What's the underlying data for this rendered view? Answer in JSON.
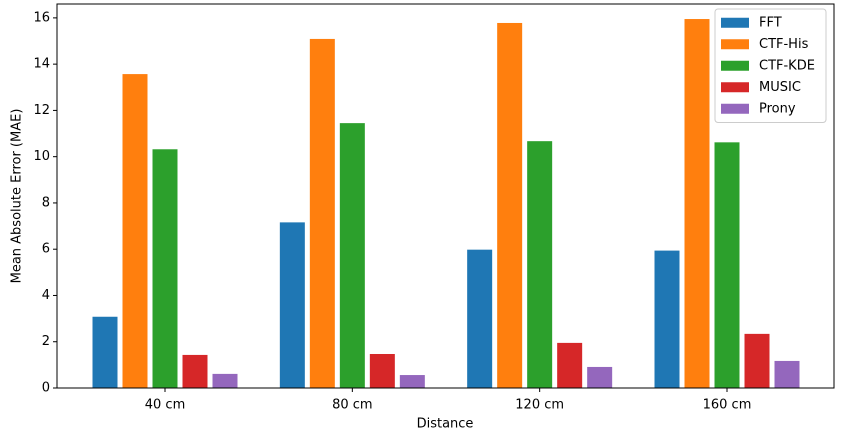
{
  "chart_data": {
    "type": "bar",
    "x_label": "Distance",
    "y_label": "Mean Absolute Error (MAE)",
    "categories": [
      "40 cm",
      "80 cm",
      "120 cm",
      "160 cm"
    ],
    "series": [
      {
        "name": "FFT",
        "color": "#1f77b4",
        "values": [
          3.08,
          7.16,
          5.98,
          5.94
        ]
      },
      {
        "name": "CTF-His",
        "color": "#ff7f0e",
        "values": [
          13.57,
          15.09,
          15.78,
          15.95
        ]
      },
      {
        "name": "CTF-KDE",
        "color": "#2ca02c",
        "values": [
          10.32,
          11.45,
          10.67,
          10.62
        ]
      },
      {
        "name": "MUSIC",
        "color": "#d62728",
        "values": [
          1.43,
          1.47,
          1.95,
          2.34
        ]
      },
      {
        "name": "Prony",
        "color": "#9467bd",
        "values": [
          0.61,
          0.56,
          0.91,
          1.17
        ]
      }
    ],
    "ylim": [
      0,
      16.6
    ],
    "yticks": [
      0,
      2,
      4,
      6,
      8,
      10,
      12,
      14,
      16
    ],
    "legend": "upper right"
  }
}
